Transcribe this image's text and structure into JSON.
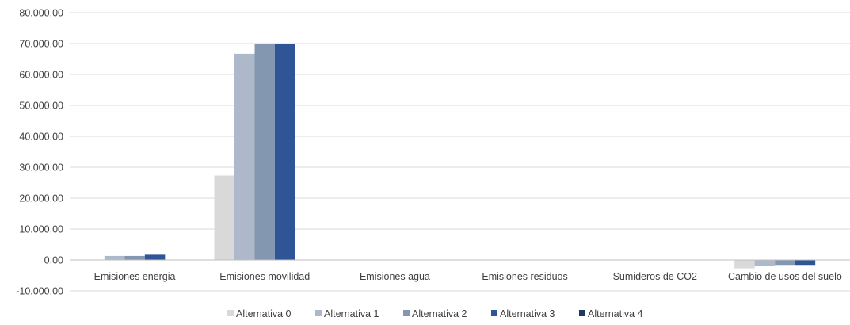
{
  "chart_data": {
    "type": "bar",
    "categories": [
      "Emisiones energia",
      "Emisiones movilidad",
      "Emisiones agua",
      "Emisiones residuos",
      "Sumideros de CO2",
      "Cambio de usos del suelo"
    ],
    "series": [
      {
        "name": "Alternativa 0",
        "color": "#d9d9d9",
        "values": [
          0,
          27300,
          0,
          0,
          0,
          -2700
        ]
      },
      {
        "name": "Alternativa 1",
        "color": "#adb9ca",
        "values": [
          1300,
          66700,
          0,
          0,
          0,
          -2000
        ]
      },
      {
        "name": "Alternativa 2",
        "color": "#8497b0",
        "values": [
          1300,
          69800,
          0,
          0,
          0,
          -1600
        ]
      },
      {
        "name": "Alternativa 3",
        "color": "#2f5597",
        "values": [
          1700,
          69800,
          0,
          0,
          0,
          -1600
        ]
      },
      {
        "name": "Alternativa 4",
        "color": "#203864",
        "values": [
          0,
          0,
          0,
          0,
          0,
          0
        ]
      }
    ],
    "yticks": [
      "80.000,00",
      "70.000,00",
      "60.000,00",
      "50.000,00",
      "40.000,00",
      "30.000,00",
      "20.000,00",
      "10.000,00",
      "0,00",
      "-10.000,00"
    ],
    "ylim": [
      -10000,
      80000
    ],
    "ytick_step": 10000,
    "grid": true,
    "legend_position": "bottom",
    "title": "",
    "xlabel": "",
    "ylabel": "",
    "colors": {
      "gridline": "#d9d9d9",
      "axis_line": "#bfbfbf",
      "text": "#404040"
    }
  }
}
